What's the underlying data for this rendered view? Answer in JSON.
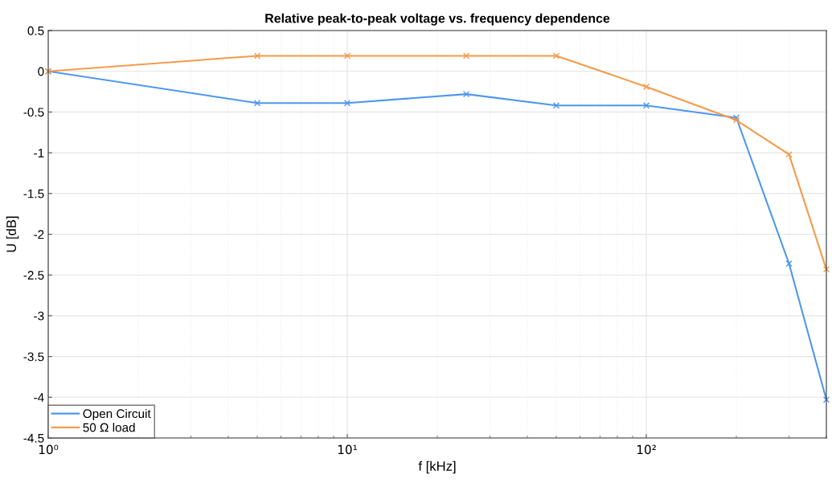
{
  "chart_data": {
    "type": "line",
    "title": "Relative peak-to-peak voltage vs. frequency dependence",
    "xlabel": "f [kHz]",
    "ylabel": "U [dB]",
    "x": [
      1,
      5,
      10,
      25,
      50,
      100,
      200,
      300,
      400
    ],
    "series": [
      {
        "name": "Open Circuit",
        "color": "#4d96f0",
        "values": [
          0,
          -0.39,
          -0.39,
          -0.28,
          -0.42,
          -0.42,
          -0.57,
          -2.36,
          -4.03
        ]
      },
      {
        "name": "50 Ω load",
        "color": "#f59a4a",
        "values": [
          0,
          0.19,
          0.19,
          0.19,
          0.19,
          -0.19,
          -0.6,
          -1.02,
          -2.43
        ]
      }
    ],
    "log": "x",
    "xlim": [
      1,
      400
    ],
    "xticks": [
      {
        "value": 1,
        "label": "10⁰"
      },
      {
        "value": 10,
        "label": "10¹"
      },
      {
        "value": 100,
        "label": "10²"
      }
    ],
    "ylim": [
      -4.5,
      0.5
    ],
    "yticks": [
      0.5,
      0,
      -0.5,
      -1,
      -1.5,
      -2,
      -2.5,
      -3,
      -3.5,
      -4,
      -4.5
    ],
    "grid": true,
    "legend": "bottom left",
    "marker": "cross",
    "line_style": "solid"
  }
}
